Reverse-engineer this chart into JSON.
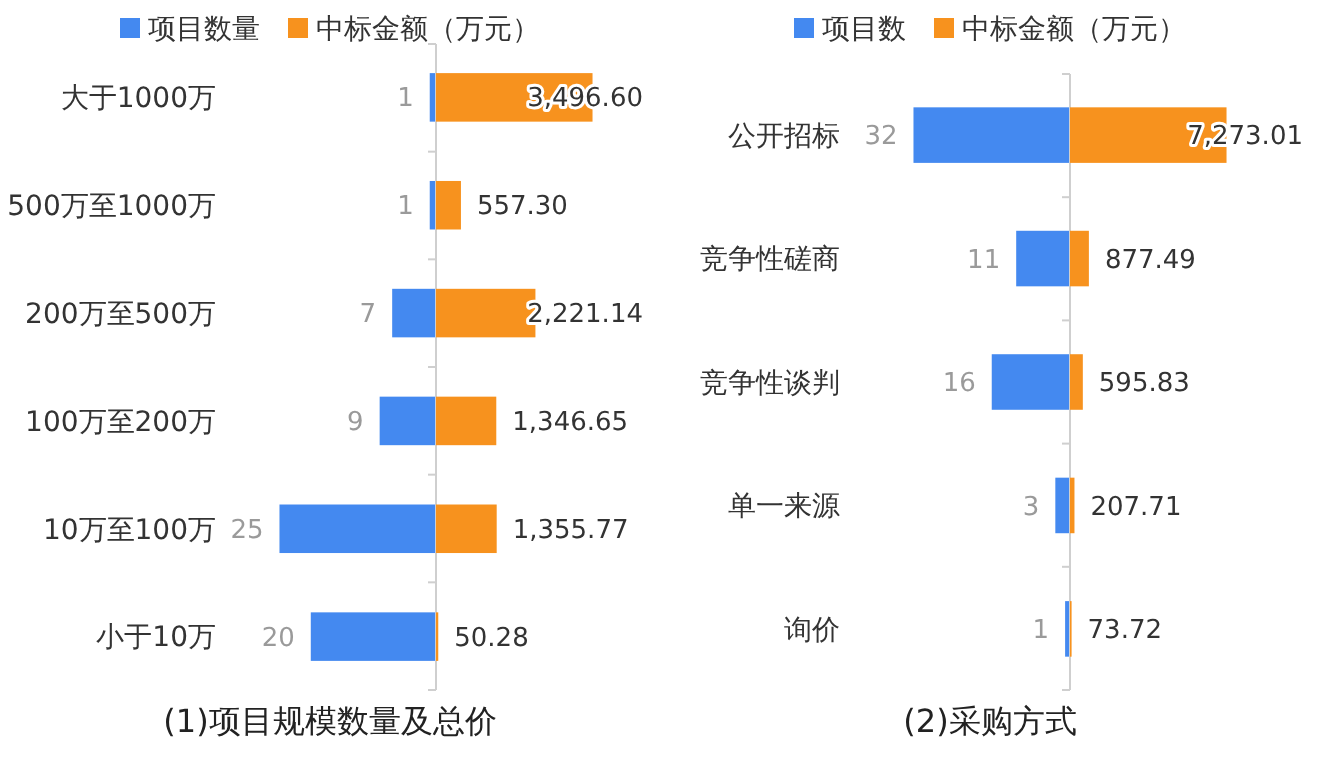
{
  "chart_data": [
    {
      "type": "bar",
      "orientation": "horizontal",
      "title": "(1)项目规模数量及总价",
      "categories": [
        "大于1000万",
        "500万至1000万",
        "200万至500万",
        "100万至200万",
        "10万至100万",
        "小于10万"
      ],
      "legend": "top",
      "tick_labels": "y",
      "series": [
        {
          "name": "项目数量",
          "color": "#4489f0",
          "values": [
            1,
            1,
            7,
            9,
            25,
            20
          ],
          "value_labels": [
            "1",
            "1",
            "7",
            "9",
            "25",
            "20"
          ]
        }
      ]
    },
    {
      "type": "bar",
      "orientation": "horizontal",
      "categories": [
        null,
        null,
        null,
        null,
        null,
        null
      ],
      "legend": "top",
      "tick_labels": false,
      "series": [
        {
          "name": "中标金额（万元）",
          "color": "#f7921e",
          "values": [
            3496.6,
            557.3,
            2221.14,
            1346.65,
            1355.77,
            50.28
          ],
          "value_labels": [
            "3,496.60",
            "557.30",
            "2,221.14",
            "1,346.65",
            "1,355.77",
            "50.28"
          ]
        }
      ]
    },
    {
      "type": "bar",
      "orientation": "horizontal",
      "title": "(2)采购方式",
      "categories": [
        "公开招标",
        "竞争性磋商",
        "竞争性谈判",
        "单一来源",
        "询价"
      ],
      "legend": "top",
      "tick_labels": "y",
      "series": [
        {
          "name": "项目数",
          "color": "#4489f0",
          "values": [
            32,
            11,
            16,
            3,
            1
          ],
          "value_labels": [
            "32",
            "11",
            "16",
            "3",
            "1"
          ]
        }
      ]
    },
    {
      "type": "bar",
      "orientation": "horizontal",
      "categories": [
        null,
        null,
        null,
        null,
        null
      ],
      "legend": "top",
      "tick_labels": false,
      "series": [
        {
          "name": "中标金额（万元）",
          "color": "#f7921e",
          "values": [
            7273.01,
            877.49,
            595.83,
            207.71,
            73.72
          ],
          "value_labels": [
            "7,273.01",
            "877.49",
            "595.83",
            "207.71",
            "73.72"
          ]
        }
      ]
    }
  ]
}
